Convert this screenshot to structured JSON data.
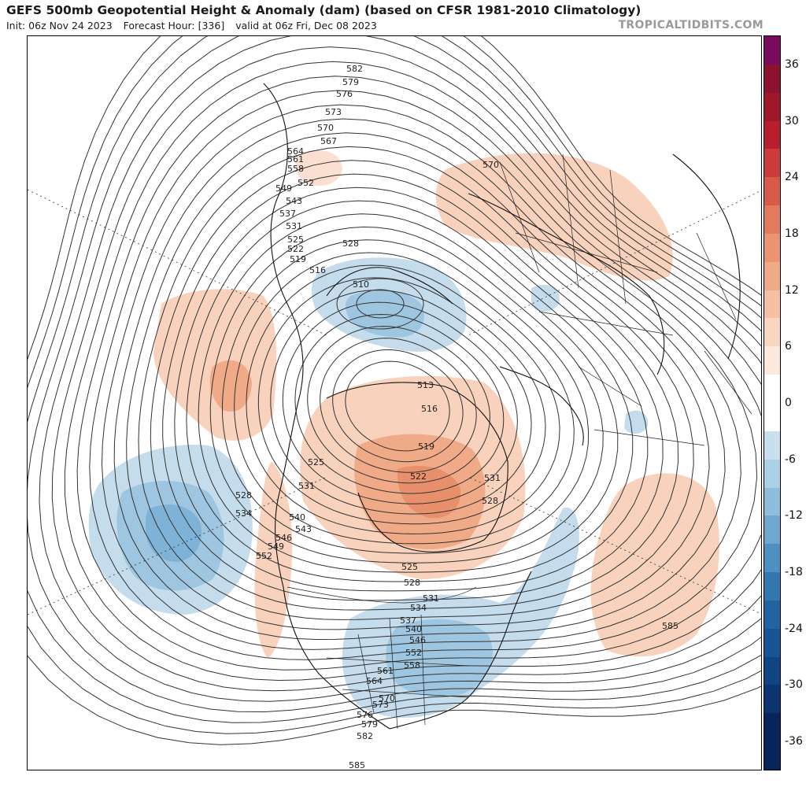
{
  "header": {
    "title": "GEFS 500mb Geopotential Height & Anomaly (dam) (based on CFSR 1981-2010 Climatology)",
    "init": "Init: 06z Nov 24 2023",
    "forecast_hour": "Forecast Hour: [336]",
    "valid": "valid at 06z Fri, Dec 08 2023",
    "brand": "TROPICALTIDBITS.COM"
  },
  "colorbar": {
    "min": -39,
    "max": 39,
    "step": 3,
    "labels": [
      "36",
      "30",
      "24",
      "18",
      "12",
      "6",
      "0",
      "-6",
      "-12",
      "-18",
      "-24",
      "-30",
      "-36"
    ],
    "label_values": [
      36,
      30,
      24,
      18,
      12,
      6,
      0,
      -6,
      -12,
      -18,
      -24,
      -30,
      -36
    ],
    "colors": {
      "36": "#7a0a5e",
      "33": "#8c1230",
      "30": "#a0162a",
      "27": "#b81e2e",
      "24": "#cc3a3a",
      "21": "#d85a48",
      "18": "#e27a5e",
      "15": "#ea9472",
      "12": "#f0aa88",
      "9": "#f6c0a2",
      "6": "#f9d6c0",
      "3": "#fde8dc",
      "0": "#ffffff",
      "-3": "#e4f0f8",
      "-6": "#c8e0ee",
      "-9": "#acd0e6",
      "-12": "#8ebedc",
      "-15": "#6ea8d0",
      "-18": "#4e90c2",
      "-21": "#3478b2",
      "-24": "#2264a2",
      "-27": "#185494",
      "-30": "#104484",
      "-33": "#0c3470",
      "-36": "#08245a"
    }
  },
  "map": {
    "contour_labels": [
      {
        "text": "582"
      },
      {
        "text": "579"
      },
      {
        "text": "576"
      },
      {
        "text": "573"
      },
      {
        "text": "570"
      },
      {
        "text": "567"
      },
      {
        "text": "564"
      },
      {
        "text": "561"
      },
      {
        "text": "558"
      },
      {
        "text": "552"
      },
      {
        "text": "549"
      },
      {
        "text": "543"
      },
      {
        "text": "537"
      },
      {
        "text": "531"
      },
      {
        "text": "528"
      },
      {
        "text": "525"
      },
      {
        "text": "522"
      },
      {
        "text": "519"
      },
      {
        "text": "516"
      },
      {
        "text": "510"
      },
      {
        "text": "513"
      },
      {
        "text": "516"
      },
      {
        "text": "519"
      },
      {
        "text": "531"
      },
      {
        "text": "528"
      },
      {
        "text": "522"
      },
      {
        "text": "525"
      },
      {
        "text": "531"
      },
      {
        "text": "540"
      },
      {
        "text": "543"
      },
      {
        "text": "546"
      },
      {
        "text": "549"
      },
      {
        "text": "552"
      },
      {
        "text": "528"
      },
      {
        "text": "534"
      },
      {
        "text": "525"
      },
      {
        "text": "528"
      },
      {
        "text": "531"
      },
      {
        "text": "534"
      },
      {
        "text": "537"
      },
      {
        "text": "540"
      },
      {
        "text": "546"
      },
      {
        "text": "552"
      },
      {
        "text": "558"
      },
      {
        "text": "561"
      },
      {
        "text": "564"
      },
      {
        "text": "570"
      },
      {
        "text": "573"
      },
      {
        "text": "576"
      },
      {
        "text": "579"
      },
      {
        "text": "582"
      },
      {
        "text": "585"
      },
      {
        "text": "585"
      },
      {
        "text": "570"
      }
    ]
  }
}
